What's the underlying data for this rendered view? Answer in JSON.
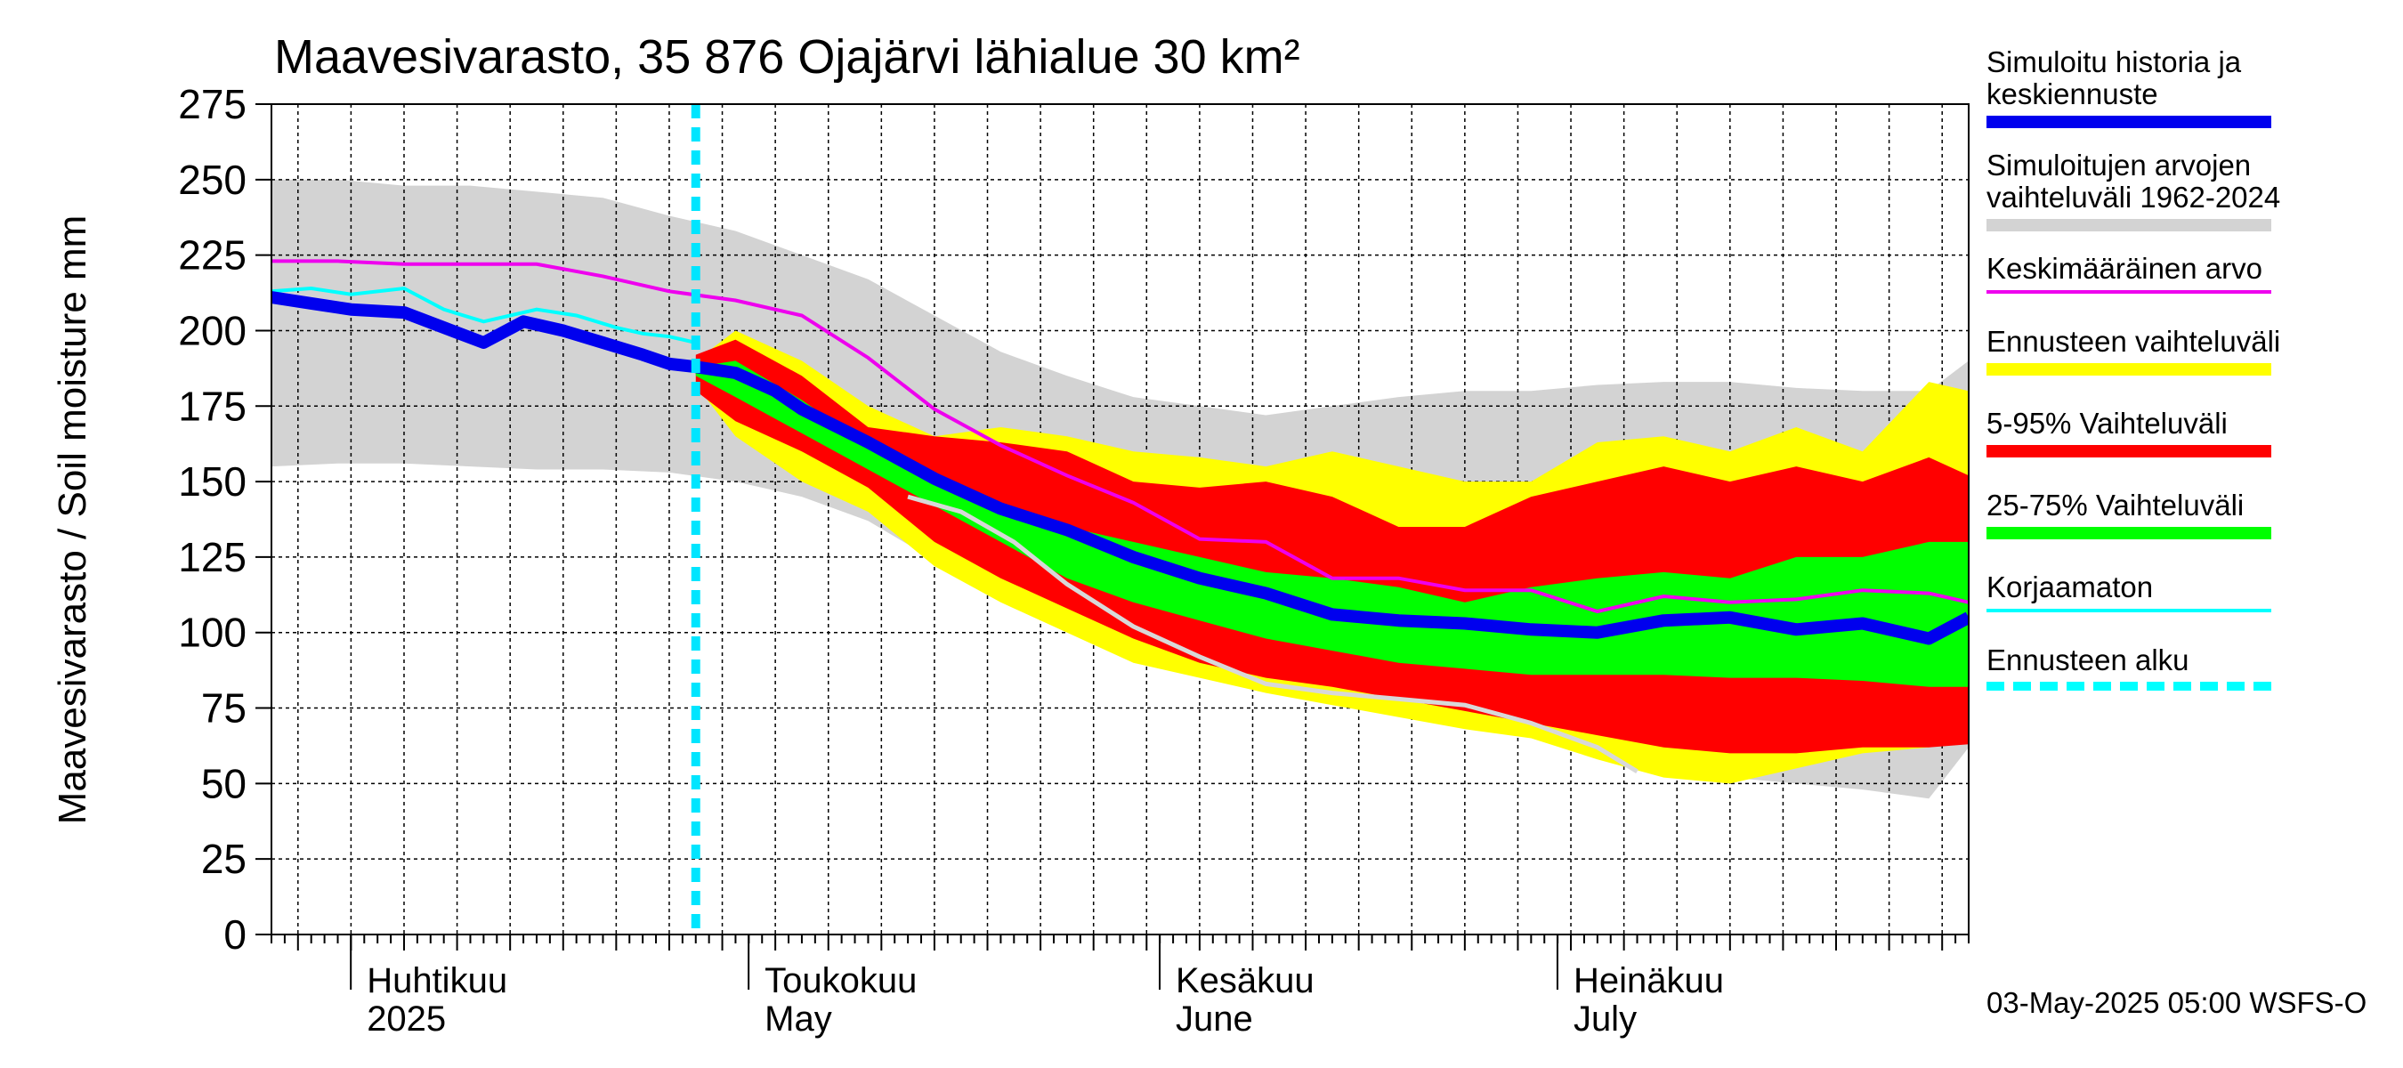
{
  "chart_data": {
    "type": "area",
    "title": "Maavesivarasto, 35 876 Ojajärvi lähialue 30 km²",
    "ylabel": "Maavesivarasto / Soil moisture   mm",
    "ylim": [
      0,
      275
    ],
    "yticks": [
      0,
      25,
      50,
      75,
      100,
      125,
      150,
      175,
      200,
      225,
      250,
      275
    ],
    "x_domain_days": [
      0,
      128
    ],
    "x_start_date": "2025-03-24",
    "forecast_start_day": 32,
    "months": [
      {
        "fi": "Huhtikuu",
        "en": "2025",
        "day": 8
      },
      {
        "fi": "Toukokuu",
        "en": "May",
        "day": 38
      },
      {
        "fi": "Kesäkuu",
        "en": "June",
        "day": 69
      },
      {
        "fi": "Heinäkuu",
        "en": "July",
        "day": 99
      }
    ],
    "timestamp": "03-May-2025 05:00 WSFS-O",
    "series": {
      "range_1962_2024": {
        "name": "Simuloitujen arvojen vaihteluväli 1962-2024",
        "color": "#d3d3d3",
        "x": [
          0,
          5,
          10,
          15,
          20,
          25,
          30,
          35,
          40,
          45,
          50,
          55,
          60,
          65,
          70,
          75,
          80,
          85,
          90,
          95,
          100,
          105,
          110,
          115,
          120,
          125,
          128
        ],
        "upper": [
          250,
          250,
          248,
          248,
          246,
          244,
          238,
          233,
          225,
          217,
          205,
          193,
          185,
          178,
          175,
          172,
          175,
          178,
          180,
          180,
          182,
          183,
          183,
          181,
          180,
          180,
          190
        ],
        "lower": [
          155,
          156,
          156,
          155,
          154,
          154,
          153,
          150,
          145,
          137,
          124,
          115,
          103,
          95,
          88,
          83,
          80,
          76,
          72,
          68,
          63,
          56,
          52,
          50,
          48,
          45,
          62
        ]
      },
      "ennuste_range": {
        "name": "Ennusteen vaihteluväli",
        "color": "#ffff00",
        "x": [
          32,
          35,
          40,
          45,
          50,
          55,
          60,
          65,
          70,
          75,
          80,
          85,
          90,
          95,
          100,
          105,
          110,
          115,
          120,
          125,
          128
        ],
        "upper": [
          190,
          200,
          190,
          175,
          165,
          168,
          165,
          160,
          158,
          155,
          160,
          155,
          150,
          150,
          163,
          165,
          160,
          168,
          160,
          183,
          180
        ],
        "lower": [
          182,
          165,
          150,
          140,
          122,
          110,
          100,
          90,
          85,
          80,
          76,
          72,
          68,
          65,
          58,
          52,
          50,
          55,
          60,
          62,
          65
        ]
      },
      "p5_95": {
        "name": "5-95% Vaihteluväli",
        "color": "#ff0000",
        "x": [
          32,
          35,
          40,
          45,
          50,
          55,
          60,
          65,
          70,
          75,
          80,
          85,
          90,
          95,
          100,
          105,
          110,
          115,
          120,
          125,
          128
        ],
        "upper": [
          192,
          197,
          185,
          168,
          165,
          163,
          160,
          150,
          148,
          150,
          145,
          135,
          135,
          145,
          150,
          155,
          150,
          155,
          150,
          158,
          152
        ],
        "lower": [
          180,
          170,
          160,
          148,
          130,
          118,
          108,
          98,
          90,
          85,
          82,
          78,
          74,
          70,
          66,
          62,
          60,
          60,
          62,
          62,
          63
        ]
      },
      "p25_75": {
        "name": "25-75% Vaihteluväli",
        "color": "#00ff00",
        "x": [
          32,
          35,
          40,
          45,
          50,
          55,
          60,
          65,
          70,
          75,
          80,
          85,
          90,
          95,
          100,
          105,
          110,
          115,
          120,
          125,
          128
        ],
        "upper": [
          188,
          190,
          177,
          162,
          150,
          140,
          135,
          130,
          125,
          120,
          118,
          115,
          110,
          115,
          118,
          120,
          118,
          125,
          125,
          130,
          130
        ],
        "lower": [
          185,
          178,
          166,
          154,
          142,
          130,
          118,
          110,
          104,
          98,
          94,
          90,
          88,
          86,
          86,
          86,
          85,
          85,
          84,
          82,
          82
        ]
      },
      "keskimaarainen": {
        "name": "Keskimääräinen arvo",
        "color": "#ee00ee",
        "x": [
          0,
          5,
          10,
          15,
          20,
          25,
          30,
          35,
          40,
          45,
          50,
          55,
          60,
          65,
          70,
          75,
          80,
          85,
          90,
          95,
          100,
          105,
          110,
          115,
          120,
          125,
          128
        ],
        "values": [
          223,
          223,
          222,
          222,
          222,
          218,
          213,
          210,
          205,
          191,
          174,
          162,
          152,
          143,
          131,
          130,
          118,
          118,
          114,
          114,
          107,
          112,
          110,
          111,
          114,
          113,
          110
        ]
      },
      "korjaamaton": {
        "name": "Korjaamaton",
        "color": "#00ffff",
        "x": [
          0,
          3,
          6,
          10,
          13,
          16,
          20,
          23,
          26,
          28,
          30,
          32
        ],
        "values": [
          213,
          214,
          212,
          214,
          207,
          203,
          207,
          205,
          201,
          199,
          198,
          196
        ]
      },
      "historia_keskiennuste": {
        "name": "Simuloitu historia ja keskiennuste",
        "color": "#0000ee",
        "x": [
          0,
          3,
          6,
          10,
          13,
          16,
          19,
          22,
          25,
          28,
          30,
          32,
          35,
          38,
          40,
          45,
          50,
          55,
          60,
          65,
          70,
          75,
          80,
          85,
          90,
          95,
          100,
          105,
          110,
          115,
          120,
          125,
          128
        ],
        "values": [
          211,
          209,
          207,
          206,
          201,
          196,
          203,
          200,
          196,
          192,
          189,
          188,
          186,
          180,
          174,
          163,
          151,
          141,
          134,
          125,
          118,
          113,
          106,
          104,
          103,
          101,
          100,
          104,
          105,
          101,
          103,
          98,
          105
        ]
      },
      "grey_member": {
        "name": "",
        "color": "#d8d8d8",
        "x": [
          48,
          52,
          56,
          60,
          65,
          70,
          75,
          80,
          85,
          90,
          95,
          100,
          103
        ],
        "values": [
          145,
          140,
          130,
          116,
          102,
          92,
          83,
          80,
          78,
          76,
          70,
          62,
          54
        ]
      }
    },
    "legend_order": [
      {
        "key": "historia_keskiennuste",
        "label": "Simuloitu historia ja\nkeskiennuste",
        "style": "solid",
        "width": 14,
        "color": "#0000ee"
      },
      {
        "key": "range_1962_2024",
        "label": "Simuloitujen arvojen\nvaihteluväli 1962-2024",
        "style": "solid",
        "width": 14,
        "color": "#d3d3d3"
      },
      {
        "key": "keskimaarainen",
        "label": "Keskimääräinen arvo",
        "style": "solid",
        "width": 4,
        "color": "#ee00ee"
      },
      {
        "key": "ennuste_range",
        "label": "Ennusteen vaihteluväli",
        "style": "solid",
        "width": 14,
        "color": "#ffff00"
      },
      {
        "key": "p5_95",
        "label": "5-95% Vaihteluväli",
        "style": "solid",
        "width": 14,
        "color": "#ff0000"
      },
      {
        "key": "p25_75",
        "label": "25-75% Vaihteluväli",
        "style": "solid",
        "width": 14,
        "color": "#00ff00"
      },
      {
        "key": "korjaamaton",
        "label": "Korjaamaton",
        "style": "solid",
        "width": 4,
        "color": "#00ffff"
      },
      {
        "key": "forecast_start",
        "label": "Ennusteen alku",
        "style": "dashed",
        "width": 10,
        "color": "#00ffff"
      }
    ]
  }
}
